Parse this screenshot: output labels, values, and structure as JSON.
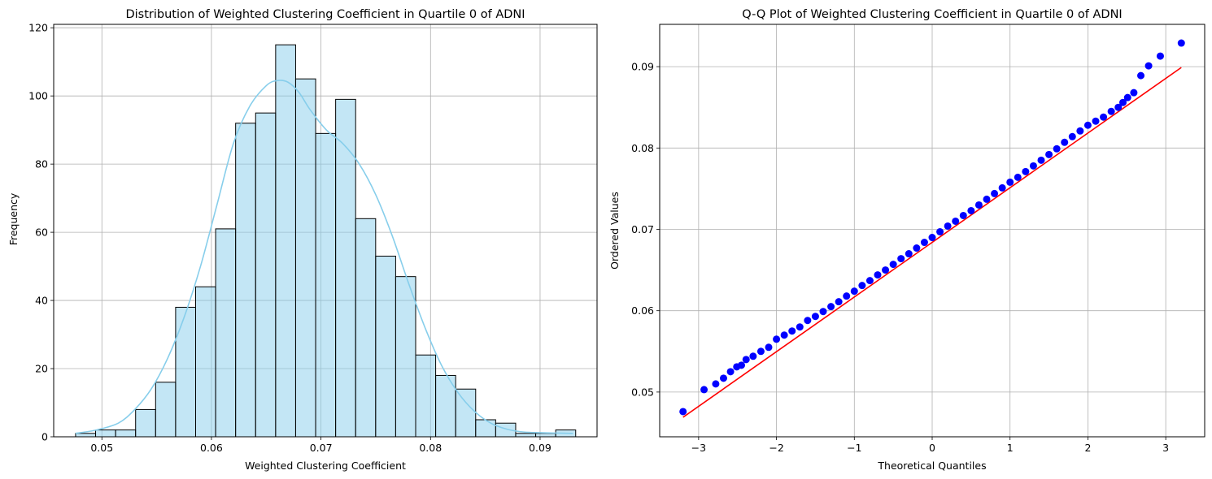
{
  "chart_data": [
    {
      "type": "bar",
      "title": "Distribution of Weighted Clustering Coefficient in Quartile 0 of ADNI",
      "xlabel": "Weighted Clustering Coefficient",
      "ylabel": "Frequency",
      "xlim": [
        0.0456,
        0.0952
      ],
      "ylim": [
        0,
        121
      ],
      "xticks": [
        0.05,
        0.06,
        0.07,
        0.08,
        0.09
      ],
      "xtick_labels": [
        "0.05",
        "0.06",
        "0.07",
        "0.08",
        "0.09"
      ],
      "yticks": [
        0,
        20,
        40,
        60,
        80,
        100,
        120
      ],
      "ytick_labels": [
        "0",
        "20",
        "40",
        "60",
        "80",
        "100",
        "120"
      ],
      "grid": true,
      "bar_color": "#87ceeb",
      "bin_start": 0.0476,
      "bin_width": 0.001826,
      "values": [
        1,
        2,
        2,
        8,
        16,
        38,
        44,
        61,
        92,
        95,
        115,
        105,
        89,
        99,
        64,
        53,
        47,
        24,
        18,
        14,
        5,
        4,
        1,
        1,
        2
      ],
      "kde": {
        "color": "#87ceeb",
        "x": [
          0.0476,
          0.0495,
          0.0515,
          0.053,
          0.0545,
          0.056,
          0.0575,
          0.059,
          0.0605,
          0.062,
          0.0635,
          0.065,
          0.066,
          0.067,
          0.068,
          0.069,
          0.0705,
          0.072,
          0.0735,
          0.075,
          0.0765,
          0.078,
          0.0795,
          0.081,
          0.0825,
          0.084,
          0.0855,
          0.087,
          0.0885,
          0.09,
          0.0915,
          0.093
        ],
        "y": [
          1,
          2,
          4,
          8,
          14,
          23,
          35,
          50,
          68,
          86,
          97,
          103,
          104.5,
          104,
          101,
          96,
          90,
          86,
          80,
          71,
          59,
          45,
          32,
          21,
          13,
          7.5,
          4,
          2.2,
          1.4,
          1.2,
          1.1,
          1.0
        ]
      }
    },
    {
      "type": "scatter",
      "title": "Q-Q Plot of Weighted Clustering Coefficient in Quartile 0 of ADNI",
      "xlabel": "Theoretical Quantiles",
      "ylabel": "Ordered Values",
      "xlim": [
        -3.5,
        3.5
      ],
      "ylim": [
        0.0445,
        0.0952
      ],
      "xticks": [
        -3,
        -2,
        -1,
        0,
        1,
        2,
        3
      ],
      "xtick_labels": [
        "−3",
        "−2",
        "−1",
        "0",
        "1",
        "2",
        "3"
      ],
      "yticks": [
        0.05,
        0.06,
        0.07,
        0.08,
        0.09
      ],
      "ytick_labels": [
        "0.05",
        "0.06",
        "0.07",
        "0.08",
        "0.09"
      ],
      "grid": true,
      "point_color": "#0000ff",
      "line_color": "#ff0000",
      "fit_line": {
        "x": [
          -3.2,
          3.2
        ],
        "y": [
          0.0469,
          0.0899
        ]
      },
      "points": [
        [
          -3.2,
          0.0476
        ],
        [
          -2.93,
          0.0503
        ],
        [
          -2.78,
          0.051
        ],
        [
          -2.68,
          0.0517
        ],
        [
          -2.59,
          0.0525
        ],
        [
          -2.51,
          0.0531
        ],
        [
          -2.45,
          0.0533
        ],
        [
          -2.39,
          0.054
        ],
        [
          -2.3,
          0.0544
        ],
        [
          -2.2,
          0.055
        ],
        [
          -2.1,
          0.0555
        ],
        [
          -2.0,
          0.0565
        ],
        [
          -1.9,
          0.057
        ],
        [
          -1.8,
          0.0575
        ],
        [
          -1.7,
          0.058
        ],
        [
          -1.6,
          0.0588
        ],
        [
          -1.5,
          0.0593
        ],
        [
          -1.4,
          0.0599
        ],
        [
          -1.3,
          0.0605
        ],
        [
          -1.2,
          0.0611
        ],
        [
          -1.1,
          0.0618
        ],
        [
          -1.0,
          0.0624
        ],
        [
          -0.9,
          0.0631
        ],
        [
          -0.8,
          0.0637
        ],
        [
          -0.7,
          0.0644
        ],
        [
          -0.6,
          0.065
        ],
        [
          -0.5,
          0.0657
        ],
        [
          -0.4,
          0.0664
        ],
        [
          -0.3,
          0.067
        ],
        [
          -0.2,
          0.0677
        ],
        [
          -0.1,
          0.0684
        ],
        [
          0.0,
          0.069
        ],
        [
          0.1,
          0.0697
        ],
        [
          0.2,
          0.0704
        ],
        [
          0.3,
          0.071
        ],
        [
          0.4,
          0.0717
        ],
        [
          0.5,
          0.0723
        ],
        [
          0.6,
          0.073
        ],
        [
          0.7,
          0.0737
        ],
        [
          0.8,
          0.0744
        ],
        [
          0.9,
          0.0751
        ],
        [
          1.0,
          0.0758
        ],
        [
          1.1,
          0.0764
        ],
        [
          1.2,
          0.0771
        ],
        [
          1.3,
          0.0778
        ],
        [
          1.4,
          0.0785
        ],
        [
          1.5,
          0.0792
        ],
        [
          1.6,
          0.0799
        ],
        [
          1.7,
          0.0807
        ],
        [
          1.8,
          0.0814
        ],
        [
          1.9,
          0.0821
        ],
        [
          2.0,
          0.0828
        ],
        [
          2.1,
          0.0833
        ],
        [
          2.2,
          0.0838
        ],
        [
          2.3,
          0.0845
        ],
        [
          2.39,
          0.085
        ],
        [
          2.45,
          0.0856
        ],
        [
          2.51,
          0.0862
        ],
        [
          2.59,
          0.0868
        ],
        [
          2.68,
          0.0889
        ],
        [
          2.78,
          0.0901
        ],
        [
          2.93,
          0.0913
        ],
        [
          3.2,
          0.0929
        ]
      ]
    }
  ]
}
